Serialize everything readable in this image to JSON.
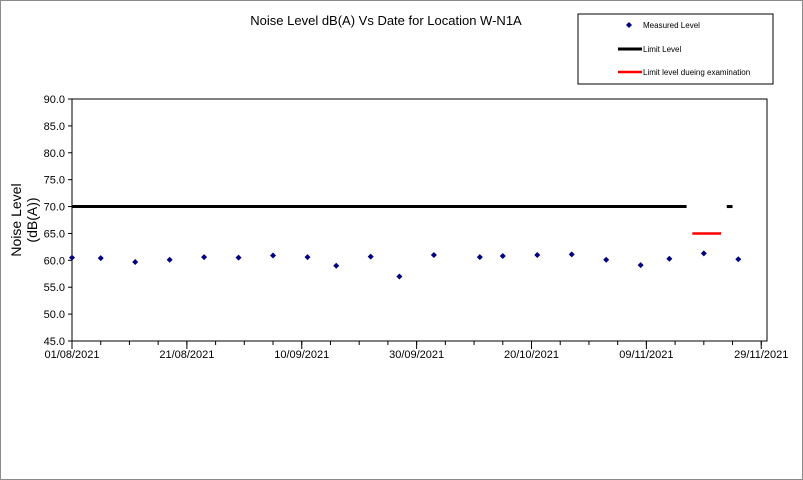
{
  "chart_data": {
    "type": "scatter",
    "title": "Noise Level dB(A) Vs Date for Location W-N1A",
    "ylabel": [
      "Noise Level",
      "(dB(A))"
    ],
    "xlabel": "",
    "ylim": [
      45.0,
      90.0
    ],
    "yticks": [
      "90.0",
      "85.0",
      "80.0",
      "75.0",
      "70.0",
      "65.0",
      "60.0",
      "55.0",
      "50.0",
      "45.0"
    ],
    "xlim": [
      "2021-08-01",
      "2021-11-30"
    ],
    "xticks": [
      "01/08/2021",
      "21/08/2021",
      "10/09/2021",
      "30/09/2021",
      "20/10/2021",
      "09/11/2021",
      "29/11/2021"
    ],
    "grid": false,
    "legend": {
      "placement": "top-right",
      "entries": [
        "Measured Level",
        "Limit Level",
        "Limit level dueing examination"
      ]
    },
    "series": [
      {
        "name": "Measured Level",
        "kind": "points",
        "color": "#000080",
        "x": [
          "2021-08-01",
          "2021-08-06",
          "2021-08-12",
          "2021-08-18",
          "2021-08-24",
          "2021-08-30",
          "2021-09-05",
          "2021-09-11",
          "2021-09-16",
          "2021-09-22",
          "2021-09-27",
          "2021-10-03",
          "2021-10-11",
          "2021-10-15",
          "2021-10-21",
          "2021-10-27",
          "2021-11-02",
          "2021-11-08",
          "2021-11-13",
          "2021-11-19",
          "2021-11-25"
        ],
        "y": [
          60.5,
          60.4,
          59.7,
          60.1,
          60.6,
          60.5,
          60.9,
          60.6,
          59.0,
          60.7,
          57.0,
          61.0,
          60.6,
          60.8,
          61.0,
          61.1,
          60.1,
          59.1,
          60.3,
          61.3,
          60.2
        ]
      },
      {
        "name": "Limit Level",
        "kind": "segments",
        "color": "#000000",
        "segments": [
          {
            "x": [
              "2021-08-01",
              "2021-11-16"
            ],
            "y": 70.0
          },
          {
            "x": [
              "2021-11-23",
              "2021-11-24"
            ],
            "y": 70.0
          }
        ]
      },
      {
        "name": "Limit level dueing examination",
        "kind": "segments",
        "color": "#ff0000",
        "segments": [
          {
            "x": [
              "2021-11-17",
              "2021-11-22"
            ],
            "y": 65.0
          }
        ]
      }
    ]
  }
}
